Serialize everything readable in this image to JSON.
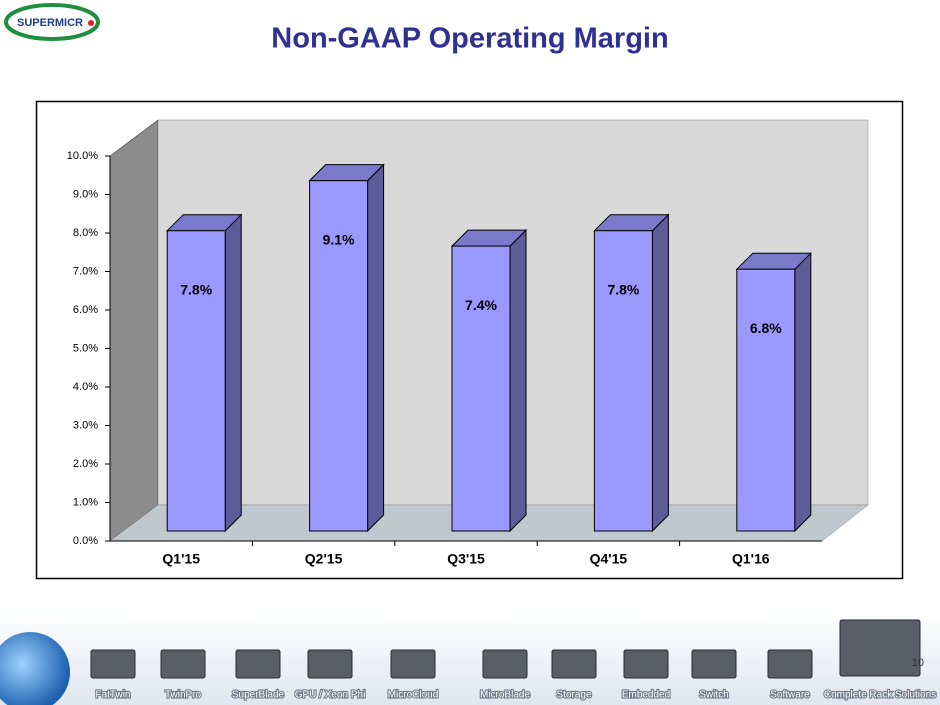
{
  "logo": "SUPERMICR",
  "page_number": "10",
  "footer": {
    "products": [
      "FatTwin",
      "TwinPro",
      "SuperBlade",
      "GPU / Xeon Phi",
      "MicroCloud",
      "MicroBlade",
      "Storage",
      "Embedded",
      "Switch",
      "Software",
      "Complete Rack Solutions"
    ]
  },
  "chart_data": {
    "type": "bar",
    "title": "Non-GAAP Operating Margin",
    "categories": [
      "Q1'15",
      "Q2'15",
      "Q3'15",
      "Q4'15",
      "Q1'16"
    ],
    "values": [
      7.8,
      9.1,
      7.4,
      7.8,
      6.8
    ],
    "value_labels": [
      "7.8%",
      "9.1%",
      "7.4%",
      "7.8%",
      "6.8%"
    ],
    "color": "#9999ff",
    "ylim": [
      0,
      10
    ],
    "yticks": [
      {
        "value": 0,
        "label": "0.0%"
      },
      {
        "value": 1,
        "label": "1.0%"
      },
      {
        "value": 2,
        "label": "2.0%"
      },
      {
        "value": 3,
        "label": "3.0%"
      },
      {
        "value": 4,
        "label": "4.0%"
      },
      {
        "value": 5,
        "label": "5.0%"
      },
      {
        "value": 6,
        "label": "6.0%"
      },
      {
        "value": 7,
        "label": "7.0%"
      },
      {
        "value": 8,
        "label": "8.0%"
      },
      {
        "value": 9,
        "label": "9.0%"
      },
      {
        "value": 10,
        "label": "10.0%"
      }
    ],
    "grid": false
  }
}
